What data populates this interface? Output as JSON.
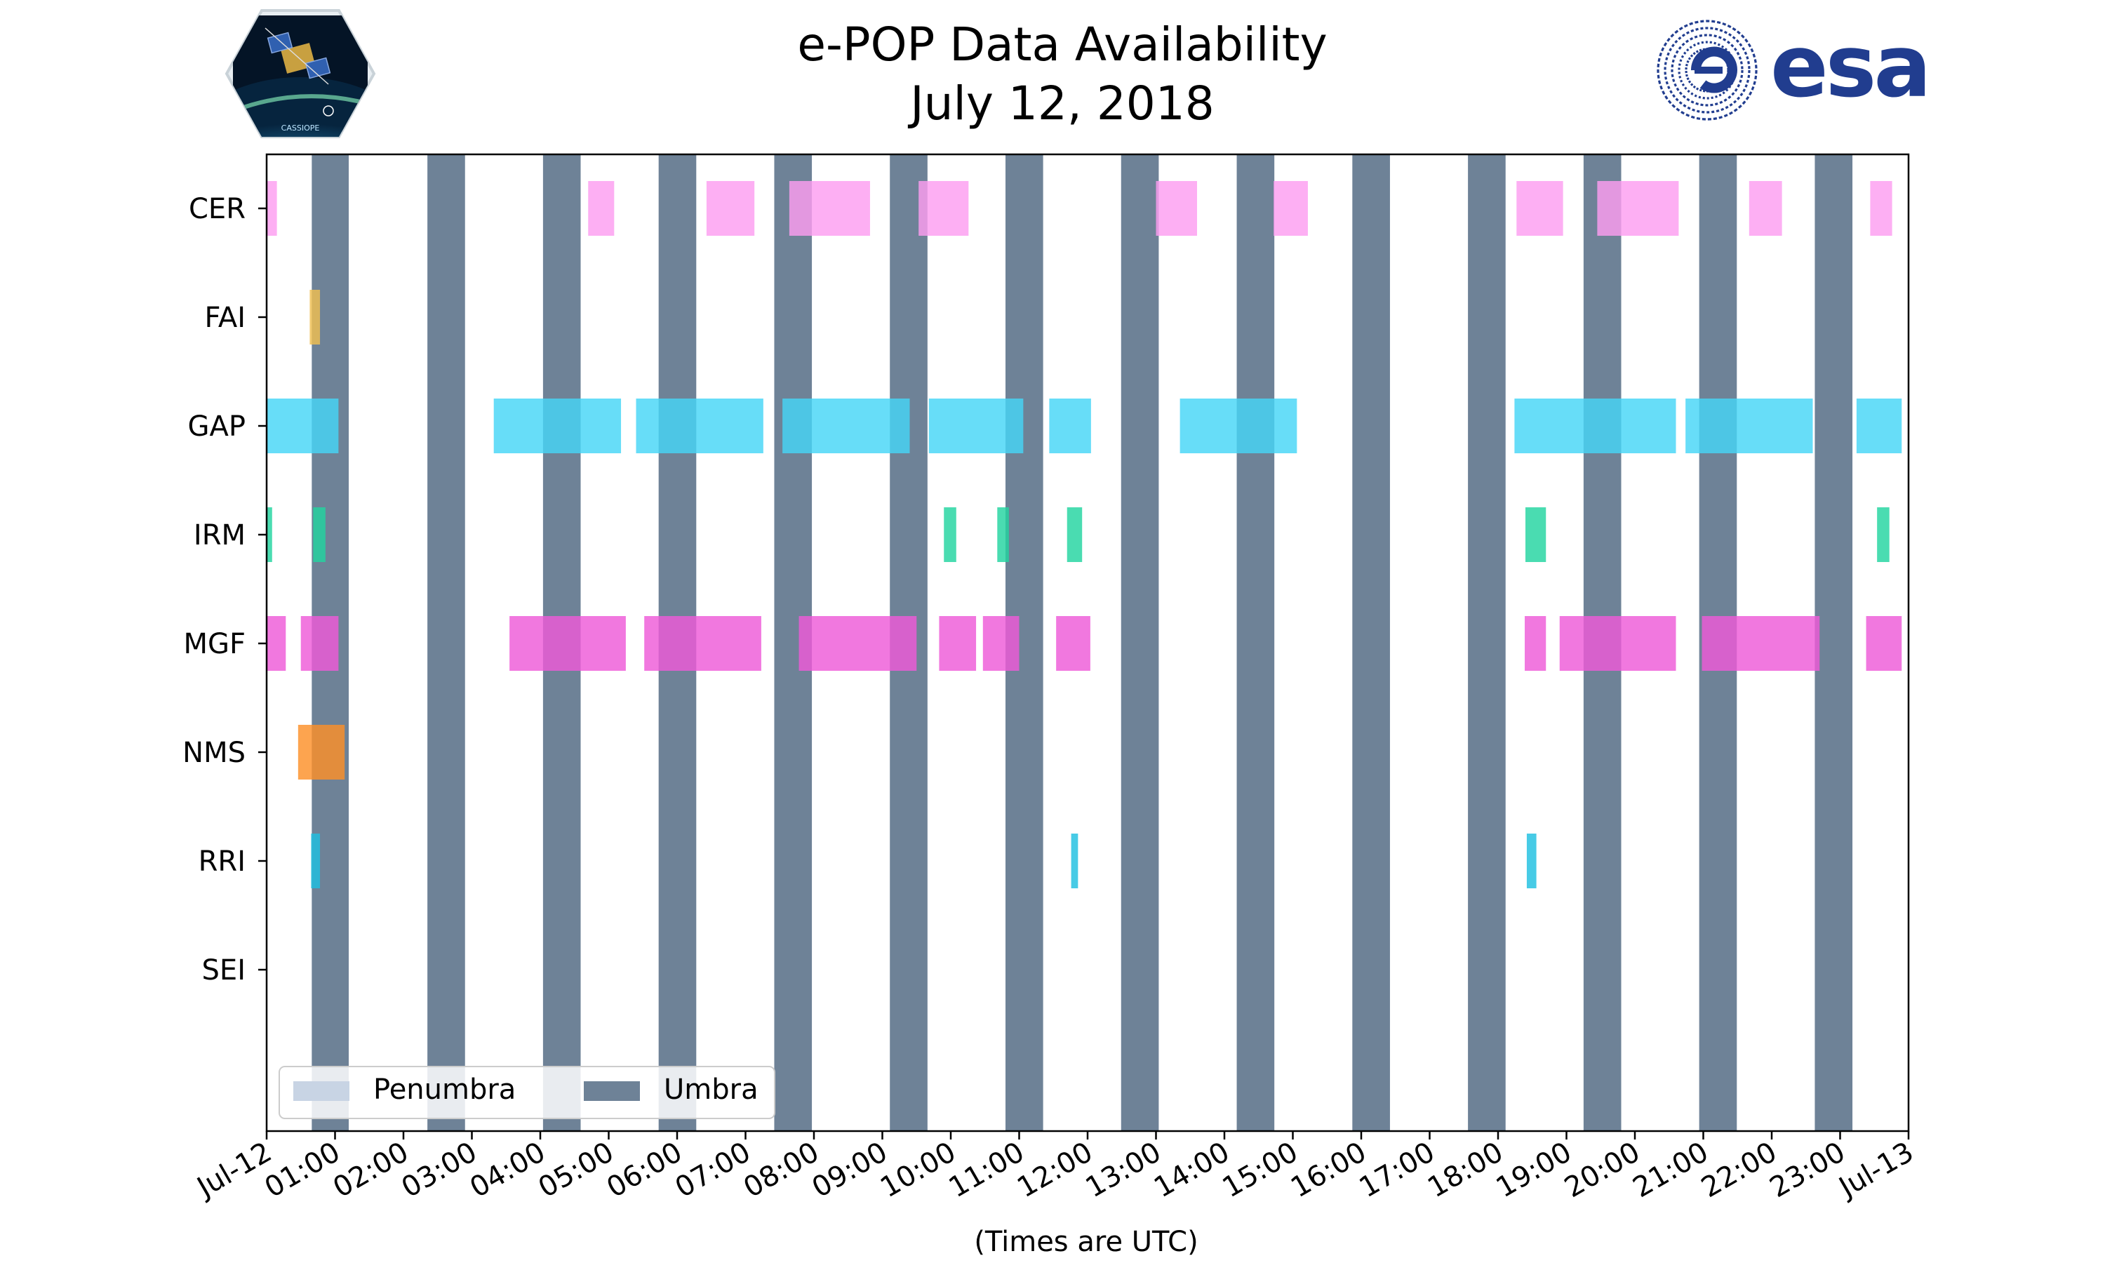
{
  "chart_data": {
    "type": "timeline",
    "title": "e-POP Data Availability",
    "subtitle": "July 12, 2018",
    "xlabel": "(Times are UTC)",
    "x_range_hours": [
      0,
      24
    ],
    "x_tick_labels": [
      "Jul-12",
      "01:00",
      "02:00",
      "03:00",
      "04:00",
      "05:00",
      "06:00",
      "07:00",
      "08:00",
      "09:00",
      "10:00",
      "11:00",
      "12:00",
      "13:00",
      "14:00",
      "15:00",
      "16:00",
      "17:00",
      "18:00",
      "19:00",
      "20:00",
      "21:00",
      "22:00",
      "23:00",
      "Jul-13"
    ],
    "instruments": [
      "CER",
      "FAI",
      "GAP",
      "IRM",
      "MGF",
      "NMS",
      "RRI",
      "SEI"
    ],
    "colors": {
      "CER": "#fc9ef0",
      "FAI": "#f0c050",
      "GAP": "#45d6f7",
      "IRM": "#22d4a0",
      "MGF": "#ee5ad8",
      "NMS": "#fd9028",
      "RRI": "#1ec0e0",
      "SEI": "#9999cc",
      "Umbra": "#6e8297",
      "Penumbra": "#c8d4e4"
    },
    "umbra_intervals": [
      [
        0.66,
        1.2
      ],
      [
        2.35,
        2.9
      ],
      [
        4.04,
        4.59
      ],
      [
        5.73,
        6.28
      ],
      [
        7.42,
        7.97
      ],
      [
        9.11,
        9.66
      ],
      [
        10.8,
        11.35
      ],
      [
        12.49,
        13.04
      ],
      [
        14.18,
        14.73
      ],
      [
        15.87,
        16.42
      ],
      [
        17.56,
        18.11
      ],
      [
        19.25,
        19.8
      ],
      [
        20.94,
        21.49
      ],
      [
        22.63,
        23.18
      ]
    ],
    "data_intervals": {
      "CER": [
        [
          0,
          0.15
        ],
        [
          4.7,
          5.08
        ],
        [
          6.43,
          7.13
        ],
        [
          7.64,
          8.82
        ],
        [
          9.53,
          10.26
        ],
        [
          13.0,
          13.6
        ],
        [
          14.72,
          15.22
        ],
        [
          18.27,
          18.95
        ],
        [
          19.45,
          20.64
        ],
        [
          21.67,
          22.15
        ],
        [
          23.44,
          23.76
        ]
      ],
      "FAI": [
        [
          0.63,
          0.78
        ]
      ],
      "GAP": [
        [
          0,
          1.05
        ],
        [
          3.32,
          5.18
        ],
        [
          5.4,
          7.26
        ],
        [
          7.54,
          9.4
        ],
        [
          9.68,
          11.06
        ],
        [
          11.44,
          12.05
        ],
        [
          13.35,
          15.06
        ],
        [
          18.24,
          20.6
        ],
        [
          20.74,
          22.6
        ],
        [
          23.24,
          23.9
        ]
      ],
      "IRM": [
        [
          0,
          0.08
        ],
        [
          0.68,
          0.86
        ],
        [
          9.9,
          10.08
        ],
        [
          10.68,
          10.85
        ],
        [
          11.7,
          11.92
        ],
        [
          18.4,
          18.7
        ],
        [
          23.54,
          23.72
        ]
      ],
      "MGF": [
        [
          0,
          0.28
        ],
        [
          0.5,
          1.05
        ],
        [
          3.55,
          5.25
        ],
        [
          5.52,
          7.23
        ],
        [
          7.78,
          9.5
        ],
        [
          9.83,
          10.37
        ],
        [
          10.47,
          11.0
        ],
        [
          11.54,
          12.04
        ],
        [
          18.39,
          18.7
        ],
        [
          18.9,
          20.6
        ],
        [
          20.98,
          22.7
        ],
        [
          23.38,
          23.9
        ]
      ],
      "NMS": [
        [
          0.46,
          1.14
        ]
      ],
      "RRI": [
        [
          0.65,
          0.78
        ],
        [
          11.76,
          11.86
        ],
        [
          18.42,
          18.56
        ]
      ],
      "SEI": []
    },
    "legend": {
      "position": "lower-left",
      "entries": [
        "Penumbra",
        "Umbra"
      ]
    }
  },
  "logos": {
    "mission": "CASSIOPE",
    "agency": "esa"
  }
}
